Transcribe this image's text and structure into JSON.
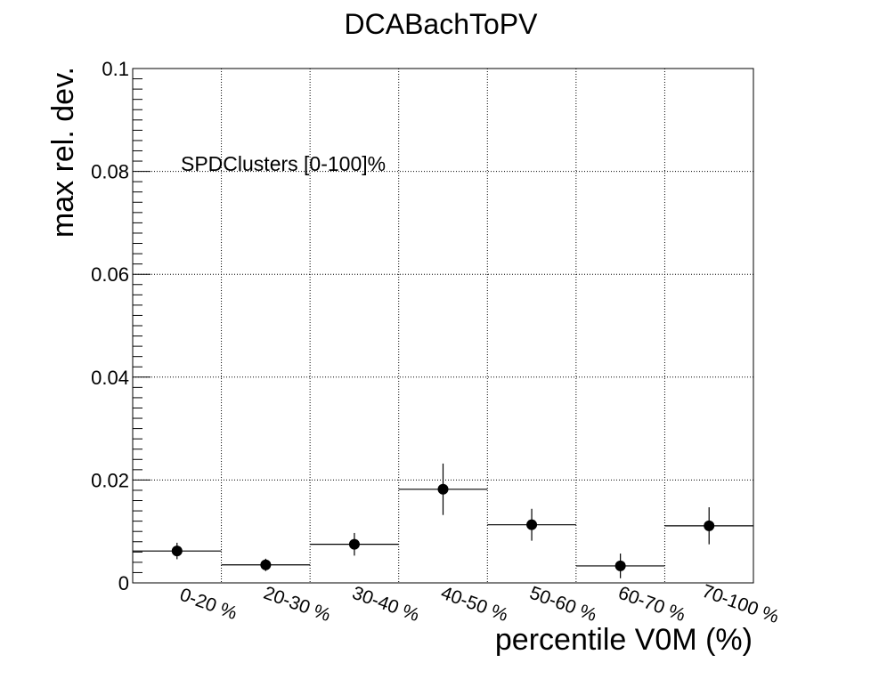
{
  "chart_data": {
    "type": "scatter",
    "title": "DCABachToPV",
    "xlabel": "percentile V0M (%)",
    "ylabel": "max rel. dev.",
    "annotation": "SPDClusters [0-100]%",
    "categories": [
      "0-20 %",
      "20-30 %",
      "30-40 %",
      "40-50 %",
      "50-60 %",
      "60-70 %",
      "70-100 %"
    ],
    "values": [
      0.0062,
      0.0035,
      0.0075,
      0.0182,
      0.0113,
      0.0033,
      0.0111
    ],
    "errors": [
      0.0016,
      0.0012,
      0.0022,
      0.005,
      0.0031,
      0.0024,
      0.0036
    ],
    "ylim": [
      0,
      0.1
    ],
    "yticks": [
      "0",
      "0.02",
      "0.04",
      "0.06",
      "0.08",
      "0.1"
    ],
    "grid": true,
    "marker_color": "#000000"
  }
}
